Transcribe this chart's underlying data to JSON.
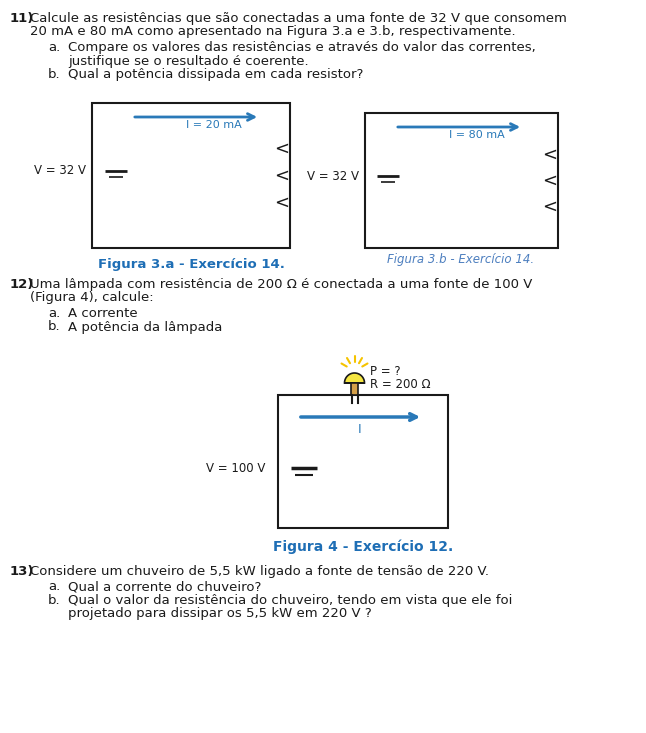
{
  "bg_color": "#ffffff",
  "text_color": "#1a1a1a",
  "blue_color": "#2979b8",
  "black": "#1a1a1a",
  "fig_label_bold_color": "#1e6eb5",
  "fig_label_italic_color": "#4d7fbf",
  "fig3a_label": "Figura 3.a - Exercício 14.",
  "fig3b_label": "Figura 3.b - Exercício 14.",
  "fig4_label": "Figura 4 - Exercício 12.",
  "v32_label": "V = 32 V",
  "i20_label": "I = 20 mA",
  "i80_label": "I = 80 mA",
  "v100_label": "V = 100 V",
  "pr_label": "P = ?",
  "r200_label": "R = 200 Ω",
  "i_label": "I"
}
